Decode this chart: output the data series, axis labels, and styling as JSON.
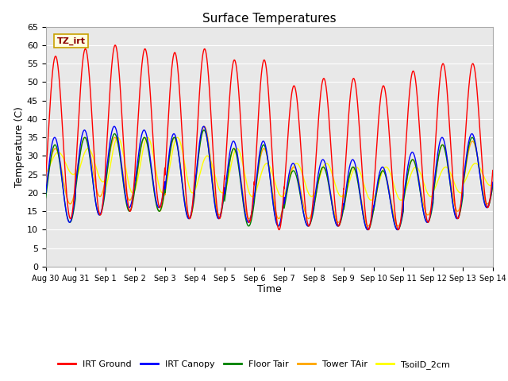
{
  "title": "Surface Temperatures",
  "xlabel": "Time",
  "ylabel": "Temperature (C)",
  "ylim": [
    0,
    65
  ],
  "yticks": [
    0,
    5,
    10,
    15,
    20,
    25,
    30,
    35,
    40,
    45,
    50,
    55,
    60,
    65
  ],
  "annotation_text": "TZ_irt",
  "legend_entries": [
    "IRT Ground",
    "IRT Canopy",
    "Floor Tair",
    "Tower TAir",
    "TsoilD_2cm"
  ],
  "legend_colors": [
    "red",
    "blue",
    "green",
    "orange",
    "yellow"
  ],
  "bg_color": "#e8e8e8",
  "irt_ground_maxs": [
    57,
    59,
    60,
    59,
    58,
    59,
    56,
    56,
    49,
    51,
    51,
    49,
    53,
    55,
    55
  ],
  "irt_ground_mins": [
    13,
    14,
    15,
    16,
    13,
    13,
    12,
    10,
    11,
    11,
    10,
    10,
    12,
    13,
    16
  ],
  "irt_canopy_maxs": [
    35,
    37,
    38,
    37,
    36,
    38,
    34,
    34,
    28,
    29,
    29,
    27,
    31,
    35,
    36
  ],
  "irt_canopy_mins": [
    12,
    14,
    16,
    16,
    13,
    13,
    12,
    11,
    11,
    11,
    10,
    10,
    12,
    13,
    16
  ],
  "floor_maxs": [
    33,
    35,
    36,
    35,
    35,
    37,
    32,
    33,
    26,
    27,
    27,
    26,
    29,
    33,
    35
  ],
  "floor_mins": [
    12,
    14,
    15,
    15,
    13,
    13,
    11,
    11,
    11,
    11,
    10,
    10,
    12,
    13,
    16
  ],
  "tower_maxs": [
    32,
    35,
    35,
    35,
    35,
    38,
    32,
    32,
    27,
    27,
    27,
    26,
    29,
    33,
    34
  ],
  "tower_mins": [
    17,
    19,
    18,
    15,
    13,
    14,
    13,
    13,
    13,
    12,
    11,
    11,
    14,
    15,
    17
  ],
  "tsoil_maxs": [
    31,
    32,
    35,
    35,
    35,
    30,
    32,
    28,
    28,
    28,
    27,
    27,
    27,
    27,
    28
  ],
  "tsoil_mins": [
    25,
    23,
    20,
    20,
    20,
    20,
    19,
    19,
    19,
    19,
    18,
    18,
    19,
    20,
    22
  ],
  "tick_labels": [
    "Aug 30",
    "Aug 31",
    "Sep 1",
    "Sep 2",
    "Sep 3",
    "Sep 4",
    "Sep 5",
    "Sep 6",
    "Sep 7",
    "Sep 8",
    "Sep 9",
    "Sep 10",
    "Sep 11",
    "Sep 12",
    "Sep 13",
    "Sep 14"
  ],
  "n_points": 3000
}
